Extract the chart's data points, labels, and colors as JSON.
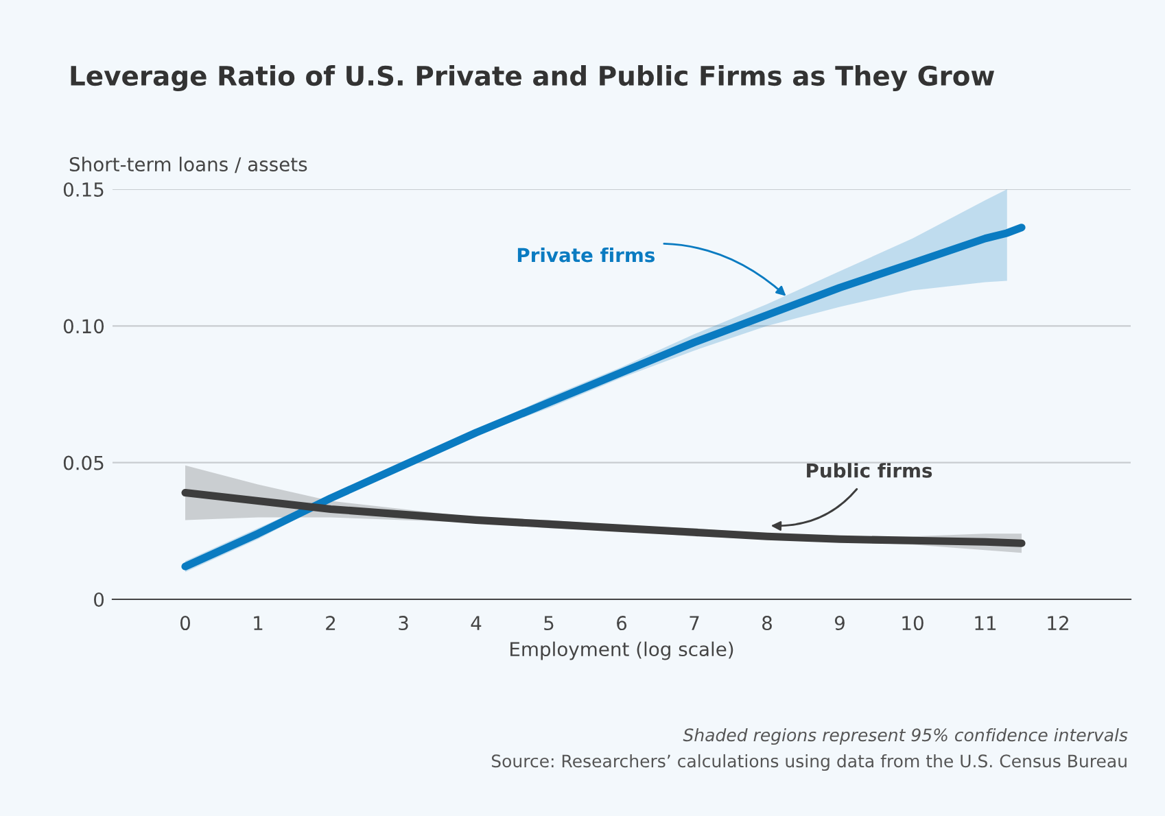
{
  "chart_data": {
    "type": "line",
    "title": "Leverage Ratio of U.S. Private and Public Firms as They Grow",
    "ylabel": "Short-term loans / assets",
    "xlabel": "Employment (log scale)",
    "series": [
      {
        "name": "Private firms",
        "color": "#0a7bc1",
        "x": [
          0,
          1,
          2,
          3,
          4,
          5,
          6,
          7,
          8,
          9,
          10,
          11,
          11.3,
          11.5
        ],
        "values": [
          0.012,
          0.024,
          0.037,
          0.049,
          0.061,
          0.072,
          0.083,
          0.094,
          0.104,
          0.114,
          0.123,
          0.132,
          0.134,
          0.136
        ],
        "lower": [
          0.01,
          0.022,
          0.036,
          0.048,
          0.06,
          0.07,
          0.081,
          0.091,
          0.1,
          0.107,
          0.113,
          0.116,
          0.1165,
          null
        ],
        "upper": [
          0.014,
          0.026,
          0.038,
          0.05,
          0.062,
          0.074,
          0.085,
          0.097,
          0.108,
          0.12,
          0.132,
          0.146,
          0.15,
          null
        ]
      },
      {
        "name": "Public firms",
        "color": "#3d3d3d",
        "x": [
          0,
          1,
          2,
          3,
          4,
          5,
          6,
          7,
          8,
          9,
          10,
          11,
          11.5
        ],
        "values": [
          0.039,
          0.036,
          0.033,
          0.031,
          0.029,
          0.0275,
          0.026,
          0.0245,
          0.023,
          0.022,
          0.0215,
          0.021,
          0.0205
        ],
        "lower": [
          0.029,
          0.03,
          0.03,
          0.029,
          0.028,
          0.026,
          0.025,
          0.023,
          0.022,
          0.021,
          0.02,
          0.018,
          0.017
        ],
        "upper": [
          0.049,
          0.042,
          0.036,
          0.033,
          0.03,
          0.029,
          0.027,
          0.026,
          0.024,
          0.023,
          0.023,
          0.024,
          0.024
        ]
      }
    ],
    "xlim": [
      -1,
      13
    ],
    "xticks": [
      0,
      1,
      2,
      3,
      4,
      5,
      6,
      7,
      8,
      9,
      10,
      11,
      12
    ],
    "ylim": [
      0,
      0.15
    ],
    "yticks": [
      0,
      {
        "value": 0.05,
        "label": "0.05"
      },
      {
        "value": 0.1,
        "label": "0.10"
      },
      {
        "value": 0.15,
        "label": "0.15"
      }
    ],
    "grid": "y",
    "legend": false,
    "line_style": "solid",
    "marker": "none",
    "annotations": [
      "Shaded regions represent 95% confidence intervals",
      "Source: Researchers’ calculations using data from the U.S. Census Bureau"
    ]
  }
}
